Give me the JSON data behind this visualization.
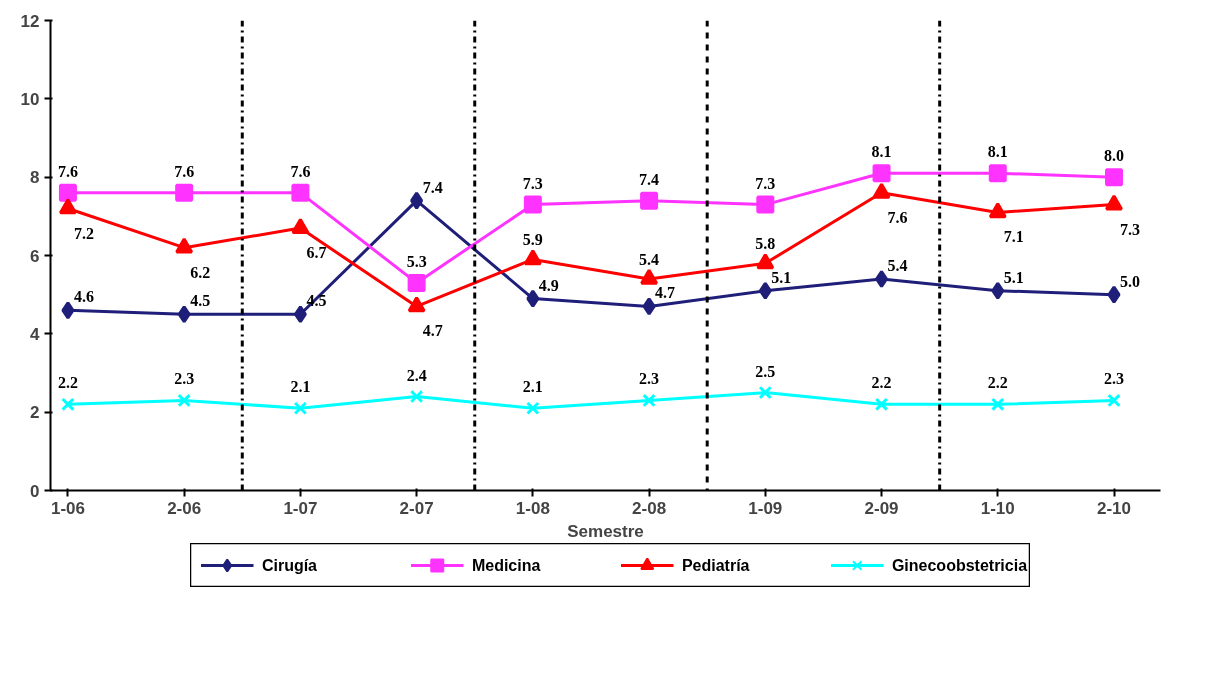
{
  "chart_data": {
    "type": "line",
    "xlabel": "Semestre",
    "categories": [
      "1-06",
      "2-06",
      "1-07",
      "2-07",
      "1-08",
      "2-08",
      "1-09",
      "2-09",
      "1-10",
      "2-10"
    ],
    "series": [
      {
        "name": "Cirugía",
        "color": "#1f1f7a",
        "marker": "diamond",
        "values": [
          4.6,
          4.5,
          4.5,
          7.4,
          4.9,
          4.7,
          5.1,
          5.4,
          5.1,
          5.0
        ],
        "value_labels": [
          "4.6",
          "4.5",
          "4.5",
          "7.4",
          "4.9",
          "4.7",
          "5.1",
          "5.4",
          "5.1",
          "5.0"
        ]
      },
      {
        "name": "Medicina",
        "color": "#ff33ff",
        "marker": "square",
        "values": [
          7.6,
          7.6,
          7.6,
          5.3,
          7.3,
          7.4,
          7.3,
          8.1,
          8.1,
          8.0
        ],
        "value_labels": [
          "7.6",
          "7.6",
          "7.6",
          "5.3",
          "7.3",
          "7.4",
          "7.3",
          "8.1",
          "8.1",
          "8.0"
        ]
      },
      {
        "name": "Pediatría",
        "color": "#ff0000",
        "marker": "triangle",
        "values": [
          7.2,
          6.2,
          6.7,
          4.7,
          5.9,
          5.4,
          5.8,
          7.6,
          7.1,
          7.3
        ],
        "value_labels": [
          "7.2",
          "6.2",
          "6.7",
          "4.7",
          "5.9",
          "5.4",
          "5.8",
          "7.6",
          "7.1",
          "7.3"
        ]
      },
      {
        "name": "Ginecoobstetricia",
        "color": "#00ffff",
        "marker": "cross",
        "values": [
          2.2,
          2.3,
          2.1,
          2.4,
          2.1,
          2.3,
          2.5,
          2.2,
          2.2,
          2.3
        ],
        "value_labels": [
          "2.2",
          "2.3",
          "2.1",
          "2.4",
          "2.1",
          "2.3",
          "2.5",
          "2.2",
          "2.2",
          "2.3"
        ]
      }
    ],
    "ylim": [
      0,
      12
    ],
    "yticks": [
      0,
      2,
      4,
      6,
      8,
      10,
      12
    ],
    "grid": false,
    "legend": "bottom",
    "line_style": "solid"
  }
}
